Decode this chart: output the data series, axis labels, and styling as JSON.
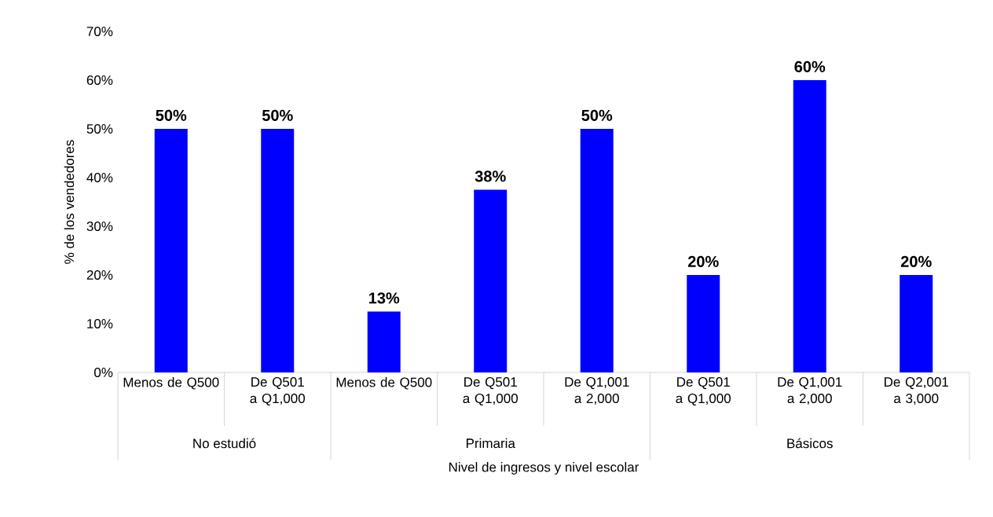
{
  "chart_data": {
    "type": "bar",
    "xlabel": "Nivel de ingresos y nivel escolar",
    "ylabel": "% de los vendedores",
    "categories": [
      "Menos de Q500",
      "De Q501 a Q1,000",
      "Menos de Q500",
      "De Q501 a Q1,000",
      "De Q1,001 a 2,000",
      "De Q501 a Q1,000",
      "De Q1,001 a 2,000",
      "De Q2,001 a 3,000"
    ],
    "values": [
      50,
      50,
      12.5,
      37.5,
      50,
      20,
      60,
      20
    ],
    "value_labels": [
      "50%",
      "50%",
      "13%",
      "38%",
      "50%",
      "20%",
      "60%",
      "20%"
    ],
    "color": "#0000ff",
    "ylim": [
      0,
      70
    ],
    "yticks": [
      {
        "value": 0,
        "label": "0%"
      },
      {
        "value": 10,
        "label": "10%"
      },
      {
        "value": 20,
        "label": "20%"
      },
      {
        "value": 30,
        "label": "30%"
      },
      {
        "value": 40,
        "label": "40%"
      },
      {
        "value": 50,
        "label": "50%"
      },
      {
        "value": 60,
        "label": "60%"
      },
      {
        "value": 70,
        "label": "70%"
      }
    ],
    "annotations": [
      "No estudió",
      "Primaria",
      "Básicos"
    ],
    "grid": false
  }
}
